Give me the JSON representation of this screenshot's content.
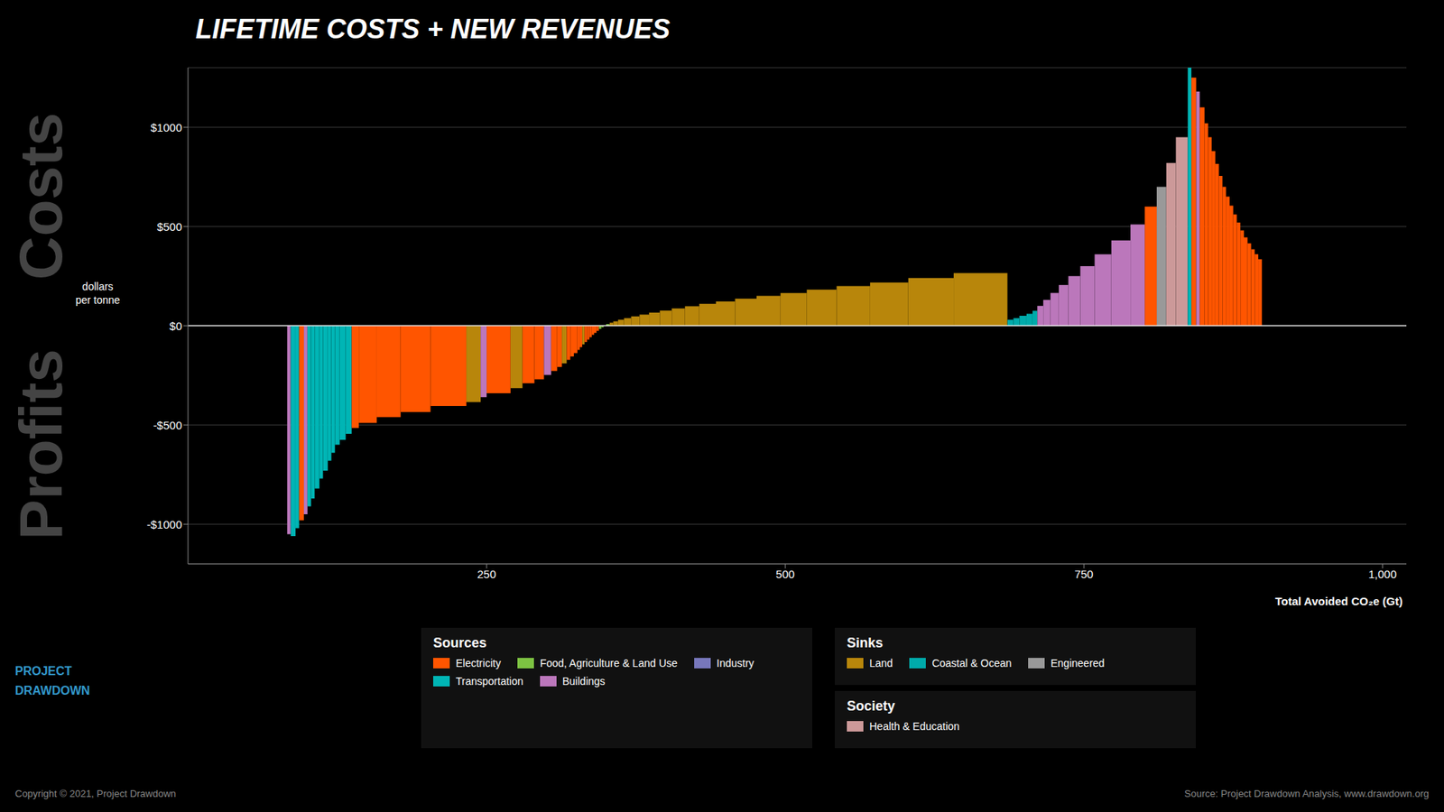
{
  "chart_data": {
    "type": "bar",
    "title": "LIFETIME COSTS + NEW REVENUES",
    "x_label": "Total Avoided CO₂e (Gt)",
    "y_label": "dollars\nper tonne",
    "xlim": [
      0,
      1020
    ],
    "xticks": [
      250,
      500,
      750,
      {
        "value": 1000,
        "label": "1,000"
      }
    ],
    "ylim": [
      -1200,
      1300
    ],
    "yticks": [
      {
        "value": -1000,
        "label": "-$1000"
      },
      {
        "value": -500,
        "label": "-$500"
      },
      {
        "value": 0,
        "label": "$0"
      },
      {
        "value": 500,
        "label": "$500"
      },
      {
        "value": 1000,
        "label": "$1000"
      }
    ],
    "grid": true,
    "background_color": "#000000",
    "text_color": "#ffffff",
    "grid_color": "#3a3a3a",
    "bars": [
      {
        "x": 83,
        "width": 3,
        "value": -1050,
        "category": "Buildings"
      },
      {
        "x": 86,
        "width": 4,
        "value": -1060,
        "category": "Transportation"
      },
      {
        "x": 90,
        "width": 3,
        "value": -1020,
        "category": "Transportation"
      },
      {
        "x": 93,
        "width": 4,
        "value": -980,
        "category": "Electricity"
      },
      {
        "x": 97,
        "width": 3,
        "value": -950,
        "category": "Buildings"
      },
      {
        "x": 100,
        "width": 3,
        "value": -910,
        "category": "Transportation"
      },
      {
        "x": 103,
        "width": 3,
        "value": -870,
        "category": "Transportation"
      },
      {
        "x": 106,
        "width": 4,
        "value": -820,
        "category": "Transportation"
      },
      {
        "x": 110,
        "width": 3,
        "value": -770,
        "category": "Transportation"
      },
      {
        "x": 113,
        "width": 4,
        "value": -730,
        "category": "Transportation"
      },
      {
        "x": 117,
        "width": 3,
        "value": -680,
        "category": "Transportation"
      },
      {
        "x": 120,
        "width": 3,
        "value": -640,
        "category": "Transportation"
      },
      {
        "x": 123,
        "width": 4,
        "value": -600,
        "category": "Transportation"
      },
      {
        "x": 127,
        "width": 5,
        "value": -575,
        "category": "Transportation"
      },
      {
        "x": 132,
        "width": 5,
        "value": -545,
        "category": "Transportation"
      },
      {
        "x": 137,
        "width": 6,
        "value": -515,
        "category": "Electricity"
      },
      {
        "x": 143,
        "width": 15,
        "value": -490,
        "category": "Electricity"
      },
      {
        "x": 158,
        "width": 20,
        "value": -460,
        "category": "Electricity"
      },
      {
        "x": 178,
        "width": 25,
        "value": -435,
        "category": "Electricity"
      },
      {
        "x": 203,
        "width": 30,
        "value": -405,
        "category": "Electricity"
      },
      {
        "x": 233,
        "width": 12,
        "value": -385,
        "category": "Land"
      },
      {
        "x": 245,
        "width": 5,
        "value": -360,
        "category": "Buildings"
      },
      {
        "x": 250,
        "width": 20,
        "value": -340,
        "category": "Electricity"
      },
      {
        "x": 270,
        "width": 10,
        "value": -315,
        "category": "Land"
      },
      {
        "x": 280,
        "width": 10,
        "value": -290,
        "category": "Electricity"
      },
      {
        "x": 290,
        "width": 8,
        "value": -270,
        "category": "Electricity"
      },
      {
        "x": 298,
        "width": 6,
        "value": -248,
        "category": "Buildings"
      },
      {
        "x": 304,
        "width": 5,
        "value": -228,
        "category": "Electricity"
      },
      {
        "x": 309,
        "width": 4,
        "value": -208,
        "category": "Electricity"
      },
      {
        "x": 313,
        "width": 4,
        "value": -190,
        "category": "Land"
      },
      {
        "x": 317,
        "width": 3,
        "value": -172,
        "category": "Electricity"
      },
      {
        "x": 320,
        "width": 3,
        "value": -155,
        "category": "Electricity"
      },
      {
        "x": 323,
        "width": 3,
        "value": -138,
        "category": "Electricity"
      },
      {
        "x": 326,
        "width": 2,
        "value": -122,
        "category": "Electricity"
      },
      {
        "x": 328,
        "width": 2,
        "value": -108,
        "category": "Electricity"
      },
      {
        "x": 330,
        "width": 2,
        "value": -94,
        "category": "Land"
      },
      {
        "x": 332,
        "width": 2,
        "value": -82,
        "category": "Electricity"
      },
      {
        "x": 334,
        "width": 2,
        "value": -70,
        "category": "Electricity"
      },
      {
        "x": 336,
        "width": 2,
        "value": -58,
        "category": "Electricity"
      },
      {
        "x": 338,
        "width": 2,
        "value": -46,
        "category": "Electricity"
      },
      {
        "x": 340,
        "width": 2,
        "value": -36,
        "category": "Electricity"
      },
      {
        "x": 342,
        "width": 2,
        "value": -26,
        "category": "Electricity"
      },
      {
        "x": 344,
        "width": 2,
        "value": -16,
        "category": "Food, Agriculture & Land Use"
      },
      {
        "x": 346,
        "width": 2,
        "value": -8,
        "category": "Food, Agriculture & Land Use"
      },
      {
        "x": 348,
        "width": 2,
        "value": 0,
        "category": "Food, Agriculture & Land Use"
      },
      {
        "x": 350,
        "width": 3,
        "value": 8,
        "category": "Food, Agriculture & Land Use"
      },
      {
        "x": 353,
        "width": 3,
        "value": 15,
        "category": "Land"
      },
      {
        "x": 356,
        "width": 4,
        "value": 22,
        "category": "Land"
      },
      {
        "x": 360,
        "width": 5,
        "value": 30,
        "category": "Land"
      },
      {
        "x": 365,
        "width": 6,
        "value": 38,
        "category": "Land"
      },
      {
        "x": 371,
        "width": 7,
        "value": 47,
        "category": "Land"
      },
      {
        "x": 378,
        "width": 8,
        "value": 56,
        "category": "Land"
      },
      {
        "x": 386,
        "width": 9,
        "value": 66,
        "category": "Land"
      },
      {
        "x": 395,
        "width": 10,
        "value": 76,
        "category": "Land"
      },
      {
        "x": 405,
        "width": 11,
        "value": 87,
        "category": "Land"
      },
      {
        "x": 416,
        "width": 12,
        "value": 98,
        "category": "Land"
      },
      {
        "x": 428,
        "width": 14,
        "value": 110,
        "category": "Land"
      },
      {
        "x": 442,
        "width": 16,
        "value": 122,
        "category": "Land"
      },
      {
        "x": 458,
        "width": 18,
        "value": 136,
        "category": "Land"
      },
      {
        "x": 476,
        "width": 20,
        "value": 150,
        "category": "Land"
      },
      {
        "x": 496,
        "width": 22,
        "value": 165,
        "category": "Land"
      },
      {
        "x": 518,
        "width": 25,
        "value": 182,
        "category": "Land"
      },
      {
        "x": 543,
        "width": 28,
        "value": 200,
        "category": "Land"
      },
      {
        "x": 571,
        "width": 32,
        "value": 218,
        "category": "Land"
      },
      {
        "x": 603,
        "width": 38,
        "value": 240,
        "category": "Land"
      },
      {
        "x": 641,
        "width": 45,
        "value": 265,
        "category": "Land"
      },
      {
        "x": 686,
        "width": 5,
        "value": 30,
        "category": "Coastal & Ocean"
      },
      {
        "x": 691,
        "width": 5,
        "value": 38,
        "category": "Coastal & Ocean"
      },
      {
        "x": 696,
        "width": 6,
        "value": 50,
        "category": "Coastal & Ocean"
      },
      {
        "x": 702,
        "width": 5,
        "value": 60,
        "category": "Coastal & Ocean"
      },
      {
        "x": 707,
        "width": 4,
        "value": 75,
        "category": "Coastal & Ocean"
      },
      {
        "x": 711,
        "width": 5,
        "value": 100,
        "category": "Buildings"
      },
      {
        "x": 716,
        "width": 6,
        "value": 130,
        "category": "Buildings"
      },
      {
        "x": 722,
        "width": 7,
        "value": 165,
        "category": "Buildings"
      },
      {
        "x": 729,
        "width": 8,
        "value": 205,
        "category": "Buildings"
      },
      {
        "x": 737,
        "width": 10,
        "value": 250,
        "category": "Buildings"
      },
      {
        "x": 747,
        "width": 12,
        "value": 300,
        "category": "Buildings"
      },
      {
        "x": 759,
        "width": 14,
        "value": 360,
        "category": "Buildings"
      },
      {
        "x": 773,
        "width": 16,
        "value": 430,
        "category": "Buildings"
      },
      {
        "x": 789,
        "width": 12,
        "value": 510,
        "category": "Buildings"
      },
      {
        "x": 801,
        "width": 10,
        "value": 600,
        "category": "Electricity"
      },
      {
        "x": 811,
        "width": 8,
        "value": 700,
        "category": "Engineered"
      },
      {
        "x": 819,
        "width": 8,
        "value": 820,
        "category": "Health & Education"
      },
      {
        "x": 827,
        "width": 10,
        "value": 950,
        "category": "Health & Education"
      },
      {
        "x": 837,
        "width": 3,
        "value": 1300,
        "category": "Transportation"
      },
      {
        "x": 840,
        "width": 4,
        "value": 1250,
        "category": "Electricity"
      },
      {
        "x": 844,
        "width": 3,
        "value": 1180,
        "category": "Buildings"
      },
      {
        "x": 847,
        "width": 4,
        "value": 1100,
        "category": "Electricity"
      },
      {
        "x": 851,
        "width": 3,
        "value": 1020,
        "category": "Electricity"
      },
      {
        "x": 854,
        "width": 3,
        "value": 950,
        "category": "Electricity"
      },
      {
        "x": 857,
        "width": 3,
        "value": 880,
        "category": "Electricity"
      },
      {
        "x": 860,
        "width": 3,
        "value": 815,
        "category": "Electricity"
      },
      {
        "x": 863,
        "width": 3,
        "value": 755,
        "category": "Electricity"
      },
      {
        "x": 866,
        "width": 3,
        "value": 700,
        "category": "Electricity"
      },
      {
        "x": 869,
        "width": 3,
        "value": 650,
        "category": "Electricity"
      },
      {
        "x": 872,
        "width": 3,
        "value": 605,
        "category": "Electricity"
      },
      {
        "x": 875,
        "width": 3,
        "value": 560,
        "category": "Electricity"
      },
      {
        "x": 878,
        "width": 3,
        "value": 520,
        "category": "Electricity"
      },
      {
        "x": 881,
        "width": 3,
        "value": 480,
        "category": "Electricity"
      },
      {
        "x": 884,
        "width": 3,
        "value": 445,
        "category": "Electricity"
      },
      {
        "x": 887,
        "width": 3,
        "value": 415,
        "category": "Electricity"
      },
      {
        "x": 890,
        "width": 3,
        "value": 385,
        "category": "Electricity"
      },
      {
        "x": 893,
        "width": 3,
        "value": 360,
        "category": "Electricity"
      },
      {
        "x": 896,
        "width": 3,
        "value": 335,
        "category": "Electricity"
      }
    ],
    "legend_groups": [
      {
        "title": "Sources",
        "items": [
          {
            "name": "Electricity",
            "color": "#FF5500"
          },
          {
            "name": "Food, Agriculture & Land Use",
            "color": "#7DC242"
          },
          {
            "name": "Industry",
            "color": "#7777BB"
          },
          {
            "name": "Transportation",
            "color": "#00B5B5"
          },
          {
            "name": "Buildings",
            "color": "#BB77BB"
          }
        ]
      },
      {
        "title": "Sinks",
        "items": [
          {
            "name": "Land",
            "color": "#B8860B"
          },
          {
            "name": "Coastal & Ocean",
            "color": "#00AAAA"
          },
          {
            "name": "Engineered",
            "color": "#999999"
          }
        ]
      },
      {
        "title": "Society",
        "items": [
          {
            "name": "Health & Education",
            "color": "#CC9999"
          }
        ]
      }
    ],
    "annotations": [
      {
        "text": "Costs",
        "color": "#444444"
      },
      {
        "text": "Profits",
        "color": "#444444"
      }
    ],
    "footer": {
      "left": "Copyright © 2021, Project Drawdown",
      "right": "Source: Project Drawdown Analysis, www.drawdown.org",
      "color": "#888888"
    },
    "logo": {
      "lines": [
        "PROJECT",
        "DRAWDOWN"
      ],
      "color": "#3399CC"
    }
  }
}
